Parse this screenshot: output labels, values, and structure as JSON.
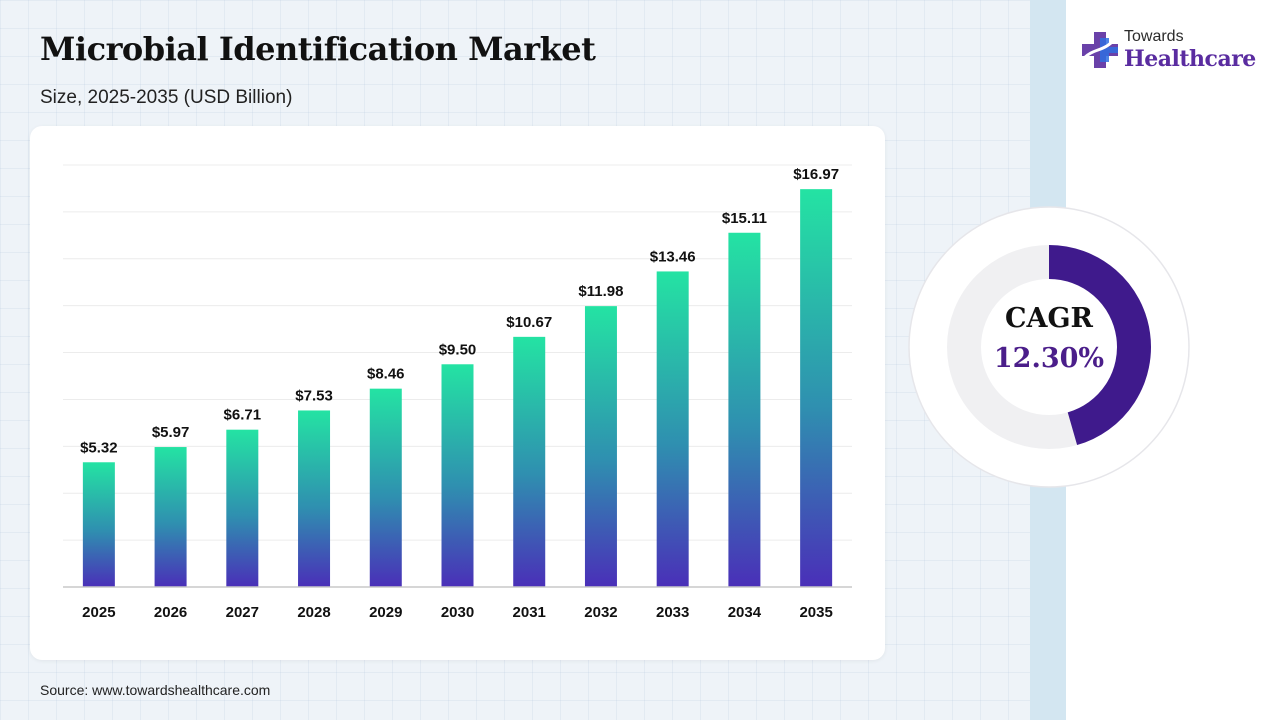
{
  "header": {
    "title": "Microbial Identification Market",
    "subtitle": "Size, 2025-2035 (USD Billion)"
  },
  "footer": {
    "source": "Source: www.towardshealthcare.com"
  },
  "logo": {
    "top": "Towards",
    "main": "Healthcare",
    "icon": "medical-cross-icon"
  },
  "cagr": {
    "label": "CAGR",
    "value": "12.30%",
    "fraction": 0.4556
  },
  "colors": {
    "bar_top": "#24e3a3",
    "bar_mid": "#2f8fb0",
    "bar_bottom": "#4a2fb8",
    "donut_arc": "#3f1a8c",
    "donut_track": "#f0f0f2",
    "logo_purple": "#5a2ca0",
    "logo_blue": "#2f6fe0"
  },
  "chart_data": {
    "type": "bar",
    "categories": [
      "2025",
      "2026",
      "2027",
      "2028",
      "2029",
      "2030",
      "2031",
      "2032",
      "2033",
      "2034",
      "2035"
    ],
    "values": [
      5.32,
      5.97,
      6.71,
      7.53,
      8.46,
      9.5,
      10.67,
      11.98,
      13.46,
      15.11,
      16.97
    ],
    "labels": [
      "$5.32",
      "$5.97",
      "$6.71",
      "$7.53",
      "$8.46",
      "$9.50",
      "$10.67",
      "$11.98",
      "$13.46",
      "$15.11",
      "$16.97"
    ],
    "title": "Microbial Identification Market",
    "subtitle": "Size, 2025-2035 (USD Billion)",
    "xlabel": "",
    "ylabel": "",
    "ylim": [
      0,
      18
    ],
    "grid": true,
    "legend": "none"
  }
}
